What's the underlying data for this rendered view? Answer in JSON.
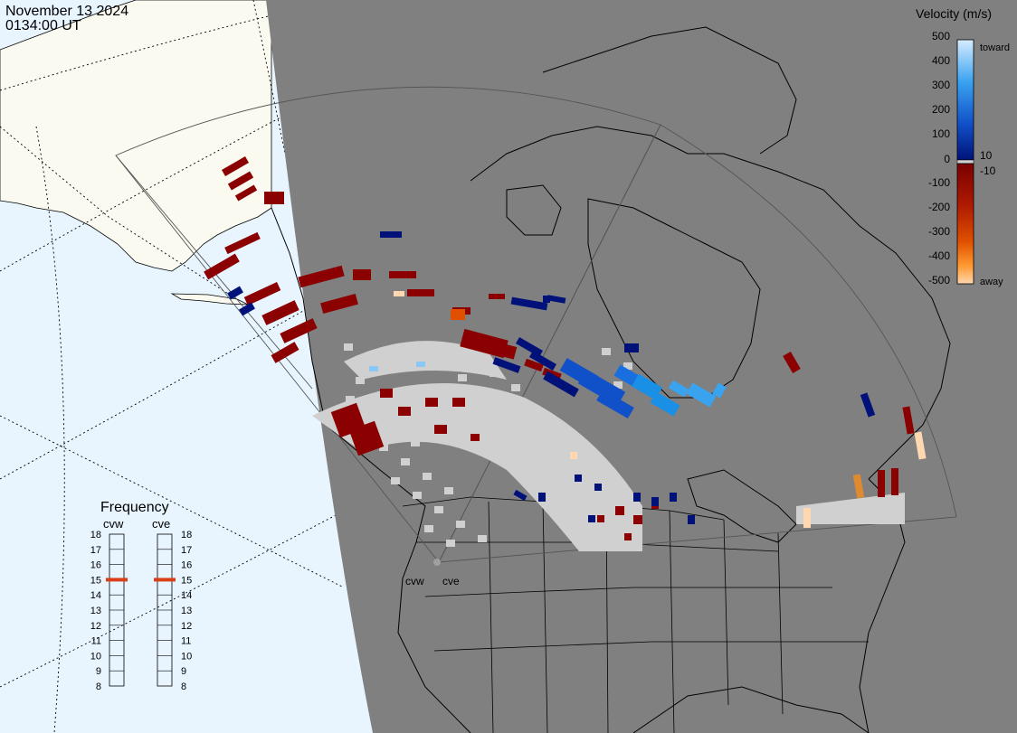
{
  "header": {
    "date": "November 13 2024",
    "time": "0134:00 UT"
  },
  "colorbar": {
    "title": "Velocity (m/s)",
    "ticks": [
      "500",
      "400",
      "300",
      "200",
      "100",
      "10",
      "0",
      "-10",
      "-100",
      "-200",
      "-300",
      "-400",
      "-500"
    ],
    "toward_label": "toward",
    "away_label": "away",
    "colors": {
      "toward_max": "#d6ecff",
      "toward_mid": "#1a8fe6",
      "toward_min": "#00127a",
      "away_min": "#7a0000",
      "away_mid": "#d94a00",
      "away_max": "#ffd7b0",
      "ground_scatter": "#d0d0d0"
    }
  },
  "frequency": {
    "title": "Frequency",
    "radars": [
      {
        "name": "cvw",
        "value": 15
      },
      {
        "name": "cve",
        "value": 15
      }
    ],
    "scale": [
      "18",
      "17",
      "16",
      "15",
      "14",
      "13",
      "12",
      "11",
      "10",
      "9",
      "8"
    ]
  },
  "radar_sites": {
    "cvw_label": "cvw",
    "cve_label": "cve"
  },
  "colors": {
    "ocean": "#e8f5ff",
    "land": "#fafaf0",
    "night_shade": "#808080",
    "freq_marker": "#d9401a"
  }
}
